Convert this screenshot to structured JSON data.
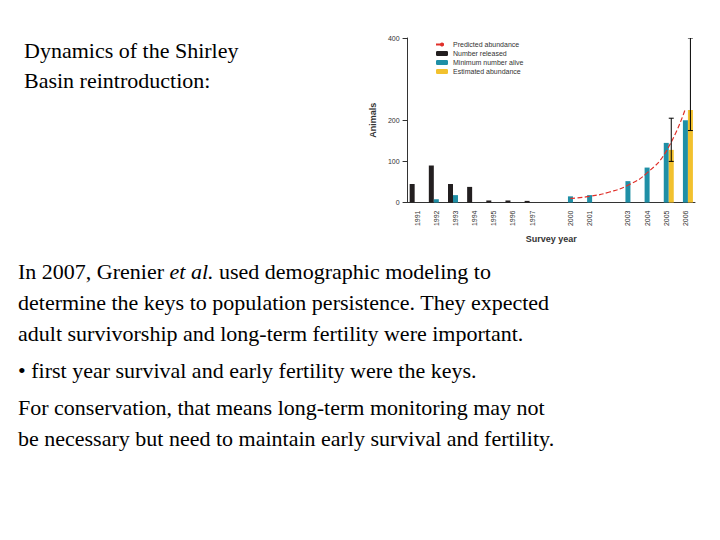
{
  "slide": {
    "title_lines": [
      "Dynamics of the Shirley",
      "Basin reintroduction:"
    ],
    "paragraphs": [
      [
        [
          "In 2007, Grenier ",
          {
            "italic": "et al."
          },
          " used demographic modeling to"
        ],
        [
          "determine the keys to population persistence. They expected"
        ],
        [
          "adult survivorship and long-term fertility were important."
        ]
      ],
      [
        [
          "• first year survival and early fertility were the keys."
        ]
      ],
      [
        [
          "For conservation, that means long-term monitoring may not"
        ],
        [
          "be necessary but need to maintain early survival and fertility."
        ]
      ]
    ]
  },
  "chart_data": {
    "type": "bar",
    "x_label": "Survey year",
    "y_label": "Animals",
    "categories": [
      "1991",
      "1992",
      "1993",
      "1994",
      "1995",
      "1996",
      "1997",
      null,
      "2000",
      "2001",
      null,
      "2003",
      "2004",
      "2005",
      "2006"
    ],
    "series": [
      {
        "name": "Predicted abundance",
        "type": "line",
        "line_style": "dashed",
        "color": "#e0302a",
        "values": [
          null,
          null,
          null,
          null,
          null,
          null,
          null,
          null,
          10,
          15,
          25,
          42,
          72,
          125,
          228
        ]
      },
      {
        "name": "Number released",
        "type": "bar",
        "color": "#231f20",
        "values": [
          45,
          90,
          45,
          38,
          5,
          5,
          4,
          null,
          null,
          null,
          null,
          null,
          null,
          null,
          null
        ]
      },
      {
        "name": "Minimum number alive",
        "type": "bar",
        "color": "#1f8fa6",
        "values": [
          null,
          8,
          18,
          null,
          null,
          null,
          null,
          null,
          15,
          18,
          null,
          52,
          85,
          145,
          200
        ]
      },
      {
        "name": "Estimated abundance",
        "type": "bar",
        "color": "#f2c12e",
        "values": [
          null,
          null,
          null,
          null,
          null,
          null,
          null,
          null,
          null,
          null,
          null,
          null,
          null,
          128,
          225
        ],
        "error_low": [
          null,
          null,
          null,
          null,
          null,
          null,
          null,
          null,
          null,
          null,
          null,
          null,
          null,
          100,
          175
        ],
        "error_high": [
          null,
          null,
          null,
          null,
          null,
          null,
          null,
          null,
          null,
          null,
          null,
          null,
          null,
          205,
          400
        ]
      }
    ],
    "ylim": [
      0,
      400
    ],
    "yticks": [
      0,
      100,
      200,
      400
    ],
    "legend": "upper left",
    "grid": false
  }
}
